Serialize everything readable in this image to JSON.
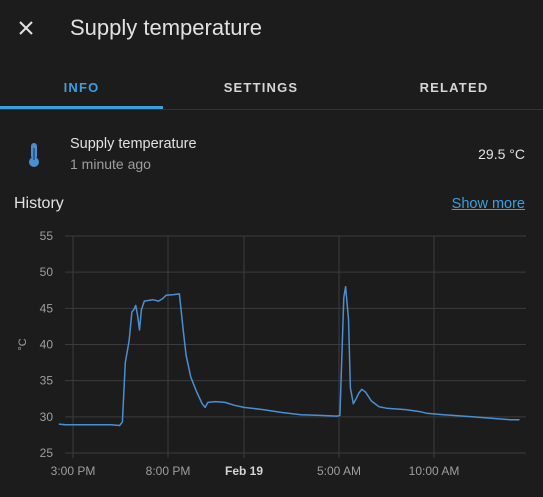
{
  "dialog": {
    "title": "Supply temperature"
  },
  "tabs": [
    {
      "label": "INFO",
      "active": true
    },
    {
      "label": "SETTINGS",
      "active": false
    },
    {
      "label": "RELATED",
      "active": false
    }
  ],
  "entity": {
    "name": "Supply temperature",
    "last_changed": "1 minute ago",
    "state": "29.5 °C",
    "icon": "thermometer-icon"
  },
  "history": {
    "heading": "History",
    "show_more_label": "Show more"
  },
  "colors": {
    "accent": "#3aa0dd",
    "series": "#4a8fd4",
    "background": "#1c1c1c"
  },
  "chart_data": {
    "type": "line",
    "xlabel": "",
    "ylabel": "°C",
    "ylim": [
      25,
      55
    ],
    "yticks": [
      25,
      30,
      35,
      40,
      45,
      50,
      55
    ],
    "grid": true,
    "x_tick_labels": [
      {
        "label": "3:00 PM",
        "h": 0,
        "bold": false
      },
      {
        "label": "8:00 PM",
        "h": 5,
        "bold": false
      },
      {
        "label": "Feb 19",
        "h": 9,
        "bold": true
      },
      {
        "label": "5:00 AM",
        "h": 14,
        "bold": false
      },
      {
        "label": "10:00 AM",
        "h": 19,
        "bold": false
      }
    ],
    "series": [
      {
        "name": "",
        "points": [
          [
            -0.75,
            29.0
          ],
          [
            -0.4,
            28.9
          ],
          [
            0.0,
            28.9
          ],
          [
            1.0,
            28.9
          ],
          [
            2.0,
            28.9
          ],
          [
            2.45,
            28.8
          ],
          [
            2.6,
            29.3
          ],
          [
            2.75,
            37.5
          ],
          [
            2.95,
            40.5
          ],
          [
            3.1,
            44.5
          ],
          [
            3.2,
            44.8
          ],
          [
            3.3,
            45.4
          ],
          [
            3.4,
            44.0
          ],
          [
            3.5,
            42.0
          ],
          [
            3.6,
            44.8
          ],
          [
            3.75,
            46.0
          ],
          [
            4.2,
            46.2
          ],
          [
            4.5,
            46.0
          ],
          [
            4.7,
            46.3
          ],
          [
            4.9,
            46.8
          ],
          [
            5.3,
            46.9
          ],
          [
            5.6,
            47.0
          ],
          [
            5.8,
            42.0
          ],
          [
            5.95,
            38.5
          ],
          [
            6.2,
            35.5
          ],
          [
            6.5,
            33.5
          ],
          [
            6.8,
            31.8
          ],
          [
            6.95,
            31.3
          ],
          [
            7.1,
            32.0
          ],
          [
            7.5,
            32.1
          ],
          [
            8.0,
            32.0
          ],
          [
            8.5,
            31.6
          ],
          [
            9.0,
            31.3
          ],
          [
            10.0,
            31.0
          ],
          [
            11.0,
            30.6
          ],
          [
            12.0,
            30.3
          ],
          [
            13.0,
            30.2
          ],
          [
            13.9,
            30.1
          ],
          [
            14.05,
            30.2
          ],
          [
            14.25,
            46.5
          ],
          [
            14.35,
            48.0
          ],
          [
            14.5,
            43.5
          ],
          [
            14.6,
            34.0
          ],
          [
            14.75,
            31.8
          ],
          [
            14.9,
            32.5
          ],
          [
            15.05,
            33.3
          ],
          [
            15.2,
            33.8
          ],
          [
            15.4,
            33.4
          ],
          [
            15.7,
            32.2
          ],
          [
            16.1,
            31.4
          ],
          [
            16.5,
            31.2
          ],
          [
            17.5,
            31.0
          ],
          [
            18.3,
            30.7
          ],
          [
            18.6,
            30.5
          ],
          [
            19.5,
            30.3
          ],
          [
            20.0,
            30.2
          ],
          [
            21.0,
            30.0
          ],
          [
            22.0,
            29.8
          ],
          [
            23.0,
            29.6
          ],
          [
            23.5,
            29.6
          ]
        ]
      }
    ]
  }
}
